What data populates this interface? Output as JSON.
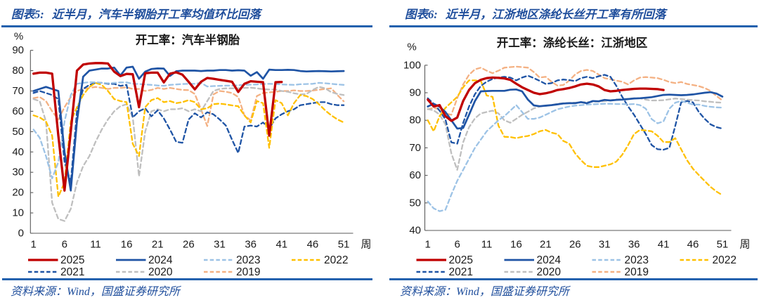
{
  "page": {
    "background": "#ffffff"
  },
  "figures": [
    {
      "header_label": "图表5:",
      "header_text": "近半月，汽车半钢胎开工率均值环比回落",
      "source_label": "资料来源：",
      "source_text": "Wind，国盛证券研究所"
    },
    {
      "header_label": "图表6:",
      "header_text": "近半月，江浙地区涤纶长丝开工率有所回落",
      "source_label": "资料来源：",
      "source_text": "Wind，国盛证券研究所"
    }
  ],
  "chart_data": [
    {
      "type": "line",
      "title": "开工率：汽车半钢胎",
      "ylabel": "%",
      "x_unit_label": "周",
      "ylim": [
        0,
        90
      ],
      "y_ticks": [
        0,
        10,
        20,
        30,
        40,
        50,
        60,
        70,
        80,
        90
      ],
      "x_ticks": [
        1,
        6,
        11,
        16,
        21,
        26,
        31,
        36,
        41,
        46,
        51
      ],
      "xlim": [
        1,
        52
      ],
      "grid": false,
      "legend_position": "bottom",
      "legend_rows": [
        [
          "2025",
          "2024",
          "2023",
          "2022"
        ],
        [
          "2021",
          "2020",
          "2019"
        ]
      ],
      "series": [
        {
          "name": "2019",
          "color": "#F4B183",
          "style": "dashed",
          "width": 2.3,
          "values": [
            66.5,
            67,
            65,
            60,
            56,
            62,
            67,
            70,
            71,
            71.5,
            72,
            71.5,
            71,
            71.5,
            71.5,
            71.8,
            71,
            71,
            70,
            70.5,
            71.5,
            71,
            71.5,
            71,
            70.5,
            70.4,
            68.5,
            61,
            52.7,
            68.3,
            70,
            69.6,
            69,
            67,
            58,
            55.5,
            67.5,
            69,
            69.3,
            69.6,
            70,
            70,
            70.3,
            70,
            70,
            70.2,
            70.6,
            71,
            71.3,
            68,
            64.9
          ]
        },
        {
          "name": "2020",
          "color": "#BFBFBF",
          "style": "dashed",
          "width": 2.3,
          "values": [
            66,
            65,
            55,
            15,
            7,
            6,
            12,
            25,
            33,
            38,
            45,
            51,
            56,
            60,
            62.5,
            63.5,
            57,
            28,
            50,
            60,
            61,
            60,
            61,
            61,
            61.5,
            60,
            61,
            60,
            65,
            70,
            71,
            71.3,
            71.3,
            71.3,
            71.5,
            71.6,
            71.3,
            70.9,
            70.7,
            70.7,
            70,
            69.6,
            68.9,
            68.3,
            68.5,
            70.5,
            72,
            71.3,
            69.4,
            68.5,
            68
          ]
        },
        {
          "name": "2021",
          "color": "#1F54A5",
          "style": "dashed",
          "width": 2.3,
          "values": [
            69,
            70,
            69,
            68,
            66,
            35,
            25,
            60,
            71,
            73,
            74,
            74,
            73.5,
            73.5,
            72.5,
            73,
            57,
            60,
            61.5,
            57.5,
            60.5,
            56.5,
            51,
            45,
            44.5,
            56,
            59,
            57,
            59.5,
            58.5,
            56,
            53,
            46,
            39.5,
            52.5,
            53,
            52.5,
            54.5,
            51.5,
            56.5,
            58.5,
            60,
            61,
            63,
            63.5,
            64,
            64.5,
            64.5,
            63.5,
            63,
            63
          ]
        },
        {
          "name": "2022",
          "color": "#FFC000",
          "style": "dashed",
          "width": 2.3,
          "values": [
            58,
            57,
            55,
            48,
            18,
            25,
            55,
            62,
            68,
            72,
            74,
            73,
            70,
            66,
            65,
            64.5,
            44,
            38,
            62,
            65.5,
            66.5,
            64.5,
            65,
            64,
            64.5,
            65.5,
            64.5,
            61,
            61.5,
            63.5,
            63.8,
            63.4,
            62.9,
            62.5,
            58,
            54.5,
            65,
            64,
            42,
            65.5,
            64,
            58,
            64,
            68,
            67.5,
            66,
            63.5,
            60.5,
            58,
            56,
            54.5
          ]
        },
        {
          "name": "2023",
          "color": "#9DC3E6",
          "style": "dashed",
          "width": 2.3,
          "values": [
            51,
            47,
            38,
            27,
            35,
            55,
            68,
            73.5,
            74,
            74.3,
            74.3,
            74,
            73.8,
            74,
            74.2,
            74.2,
            73.5,
            73.4,
            73.2,
            73,
            72.7,
            72.5,
            73,
            73.2,
            73.4,
            73.5,
            73.5,
            74,
            72.2,
            72.4,
            72.5,
            72.6,
            72.6,
            72.8,
            73,
            73.1,
            73.2,
            73.4,
            73.5,
            73.4,
            73.2,
            73.1,
            73,
            73.3,
            73.4,
            73.5,
            74,
            73.8,
            73.5,
            73.2,
            73
          ]
        },
        {
          "name": "2024",
          "color": "#1F54A5",
          "style": "solid",
          "width": 2.7,
          "values": [
            70,
            71,
            72,
            71,
            70,
            40,
            21,
            55,
            77,
            80,
            80.5,
            81,
            81,
            81.5,
            77.6,
            81.5,
            81.9,
            76,
            79.5,
            80.8,
            81.1,
            81,
            77.4,
            79.7,
            80,
            80,
            80,
            79.8,
            80,
            80,
            80.3,
            80.3,
            80,
            80.2,
            80,
            77.5,
            79.3,
            76,
            80.5,
            80.3,
            80.3,
            80.4,
            80.3,
            79.8,
            79.6,
            79.7,
            79.8,
            79.7,
            79.6,
            79.7,
            79.8
          ]
        },
        {
          "name": "2025",
          "color": "#C00000",
          "style": "solid",
          "width": 3.3,
          "values": [
            78.5,
            79,
            79,
            78.5,
            48,
            21,
            50,
            80,
            83,
            83.5,
            83.7,
            83.7,
            83.5,
            79.5,
            77.3,
            78.4,
            78.2,
            62,
            78.7,
            79,
            79,
            74.2,
            78.5,
            79.2,
            78,
            74.5,
            70.8,
            74.5,
            76.4,
            76,
            75.5,
            75,
            74.5,
            69.5,
            73.5,
            74.8,
            74.5,
            74.3,
            48,
            74.3,
            74.4
          ]
        }
      ]
    },
    {
      "type": "line",
      "title": "开工率：涤纶长丝：江浙地区",
      "ylabel": "%",
      "x_unit_label": "周",
      "ylim": [
        40,
        100
      ],
      "y_ticks": [
        40,
        50,
        60,
        70,
        80,
        90,
        100
      ],
      "x_ticks": [
        1,
        6,
        11,
        16,
        21,
        26,
        31,
        36,
        41,
        46,
        51
      ],
      "xlim": [
        1,
        52
      ],
      "grid": false,
      "legend_position": "bottom",
      "legend_rows": [
        [
          "2025",
          "2024",
          "2023",
          "2022"
        ],
        [
          "2021",
          "2020",
          "2019"
        ]
      ],
      "series": [
        {
          "name": "2019",
          "color": "#F4B183",
          "style": "dashed",
          "width": 2.3,
          "values": [
            84,
            84.5,
            84,
            82.5,
            82,
            88,
            93,
            96.5,
            98.5,
            99.1,
            98,
            97.1,
            98,
            99.1,
            99.3,
            99.5,
            99.3,
            99.1,
            97.5,
            95.5,
            95.8,
            94,
            92.6,
            92.8,
            94.4,
            96.6,
            97.9,
            98.3,
            97.9,
            96.6,
            95.3,
            94.9,
            94.4,
            94,
            93,
            94.5,
            95.5,
            95.7,
            95.5,
            95.3,
            94.7,
            93.9,
            93.5,
            93.9,
            93.2,
            92.8,
            92.4,
            91.7,
            90.6,
            88.8,
            87.2
          ]
        },
        {
          "name": "2020",
          "color": "#BFBFBF",
          "style": "dashed",
          "width": 2.3,
          "values": [
            84.1,
            83.6,
            82.1,
            78.5,
            68,
            62,
            72,
            77.5,
            80.7,
            82.5,
            83,
            83.5,
            82.5,
            80,
            79.1,
            80.5,
            82,
            83.1,
            84.3,
            85,
            85.2,
            85.5,
            86,
            86.2,
            86.3,
            86.4,
            86.5,
            86.6,
            86.7,
            86.8,
            87,
            87.3,
            87.6,
            87.7,
            87.8,
            88,
            88,
            87.5,
            87.2,
            87.2,
            87.3,
            87.6,
            87.9,
            87.7,
            87.5,
            87.3,
            87.2,
            86.9,
            86.7,
            86.5,
            86.4
          ]
        },
        {
          "name": "2021",
          "color": "#1F54A5",
          "style": "dashed",
          "width": 2.3,
          "values": [
            88,
            86,
            83.5,
            80.3,
            72,
            71.5,
            79,
            85,
            89.5,
            92.5,
            94,
            95,
            95.5,
            95.8,
            95.5,
            94.5,
            95.5,
            96.2,
            95.3,
            94.3,
            93.2,
            93.5,
            94.5,
            94.8,
            94.6,
            94.2,
            95.3,
            95.8,
            95.3,
            96,
            96.5,
            95.8,
            92.5,
            88.5,
            85,
            82,
            78.5,
            75,
            71,
            69.5,
            69.3,
            70,
            78,
            86.5,
            87,
            86.5,
            83,
            80.5,
            78.5,
            77.5,
            77
          ]
        },
        {
          "name": "2022",
          "color": "#FFC000",
          "style": "dashed",
          "width": 2.3,
          "values": [
            80,
            76,
            81.5,
            84.5,
            86.5,
            88.5,
            92,
            94.5,
            94.5,
            94.3,
            89,
            88.5,
            78,
            74,
            73.9,
            73.5,
            74,
            74.3,
            75,
            76,
            76.5,
            75.5,
            75,
            72.5,
            71.5,
            68,
            65.5,
            63.5,
            63,
            63,
            63.5,
            64,
            65,
            67.5,
            71,
            75,
            76.5,
            76.3,
            76,
            74.4,
            72.1,
            72.1,
            73.5,
            69.5,
            65.5,
            62.4,
            60.1,
            57.9,
            55.8,
            54.1,
            52.8
          ]
        },
        {
          "name": "2023",
          "color": "#9DC3E6",
          "style": "dashed",
          "width": 2.3,
          "values": [
            50.5,
            48,
            47,
            47.5,
            53,
            58,
            62,
            66,
            70,
            73,
            76,
            78,
            80,
            81.5,
            83.5,
            85.5,
            83,
            80.5,
            80.5,
            81,
            82,
            83,
            84,
            84.5,
            85,
            85.3,
            85.5,
            85.7,
            85.8,
            85.9,
            86,
            86,
            85.9,
            85.9,
            85.8,
            85.9,
            85.5,
            84.2,
            80.4,
            78.9,
            79.6,
            84.2,
            86.4,
            87,
            86.4,
            85.7,
            85.7,
            85.2,
            84.9,
            84.7,
            84.6
          ]
        },
        {
          "name": "2024",
          "color": "#1F54A5",
          "style": "solid",
          "width": 2.7,
          "values": [
            85,
            86,
            84.9,
            83,
            80,
            77,
            77.2,
            82,
            87,
            90.5,
            90.6,
            90.7,
            90.7,
            90.7,
            91.1,
            91.2,
            90.5,
            87.5,
            85.4,
            85.1,
            85.3,
            85.5,
            85.8,
            86.1,
            86.2,
            86.2,
            86.6,
            86.2,
            87,
            86.9,
            87.4,
            87.2,
            87.4,
            87.5,
            87.7,
            87.9,
            88,
            88.2,
            88.4,
            88.8,
            89.2,
            89.3,
            89.2,
            89.1,
            89.2,
            89.4,
            89.7,
            90,
            90.2,
            89.7,
            88.6
          ]
        },
        {
          "name": "2025",
          "color": "#C00000",
          "style": "solid",
          "width": 3.3,
          "values": [
            87.5,
            85,
            85.5,
            81.5,
            79.8,
            81,
            87,
            91,
            93.5,
            94.7,
            95.3,
            95.5,
            95.4,
            95.2,
            94.7,
            93.3,
            92,
            91,
            90,
            89.5,
            89.8,
            90.3,
            91,
            91.3,
            91.7,
            92.3,
            93,
            93.3,
            93,
            92.3,
            91,
            90.5,
            90.7,
            91,
            91.2,
            91.4,
            91.5,
            91.5,
            91.4,
            91.3,
            91
          ]
        }
      ]
    }
  ]
}
